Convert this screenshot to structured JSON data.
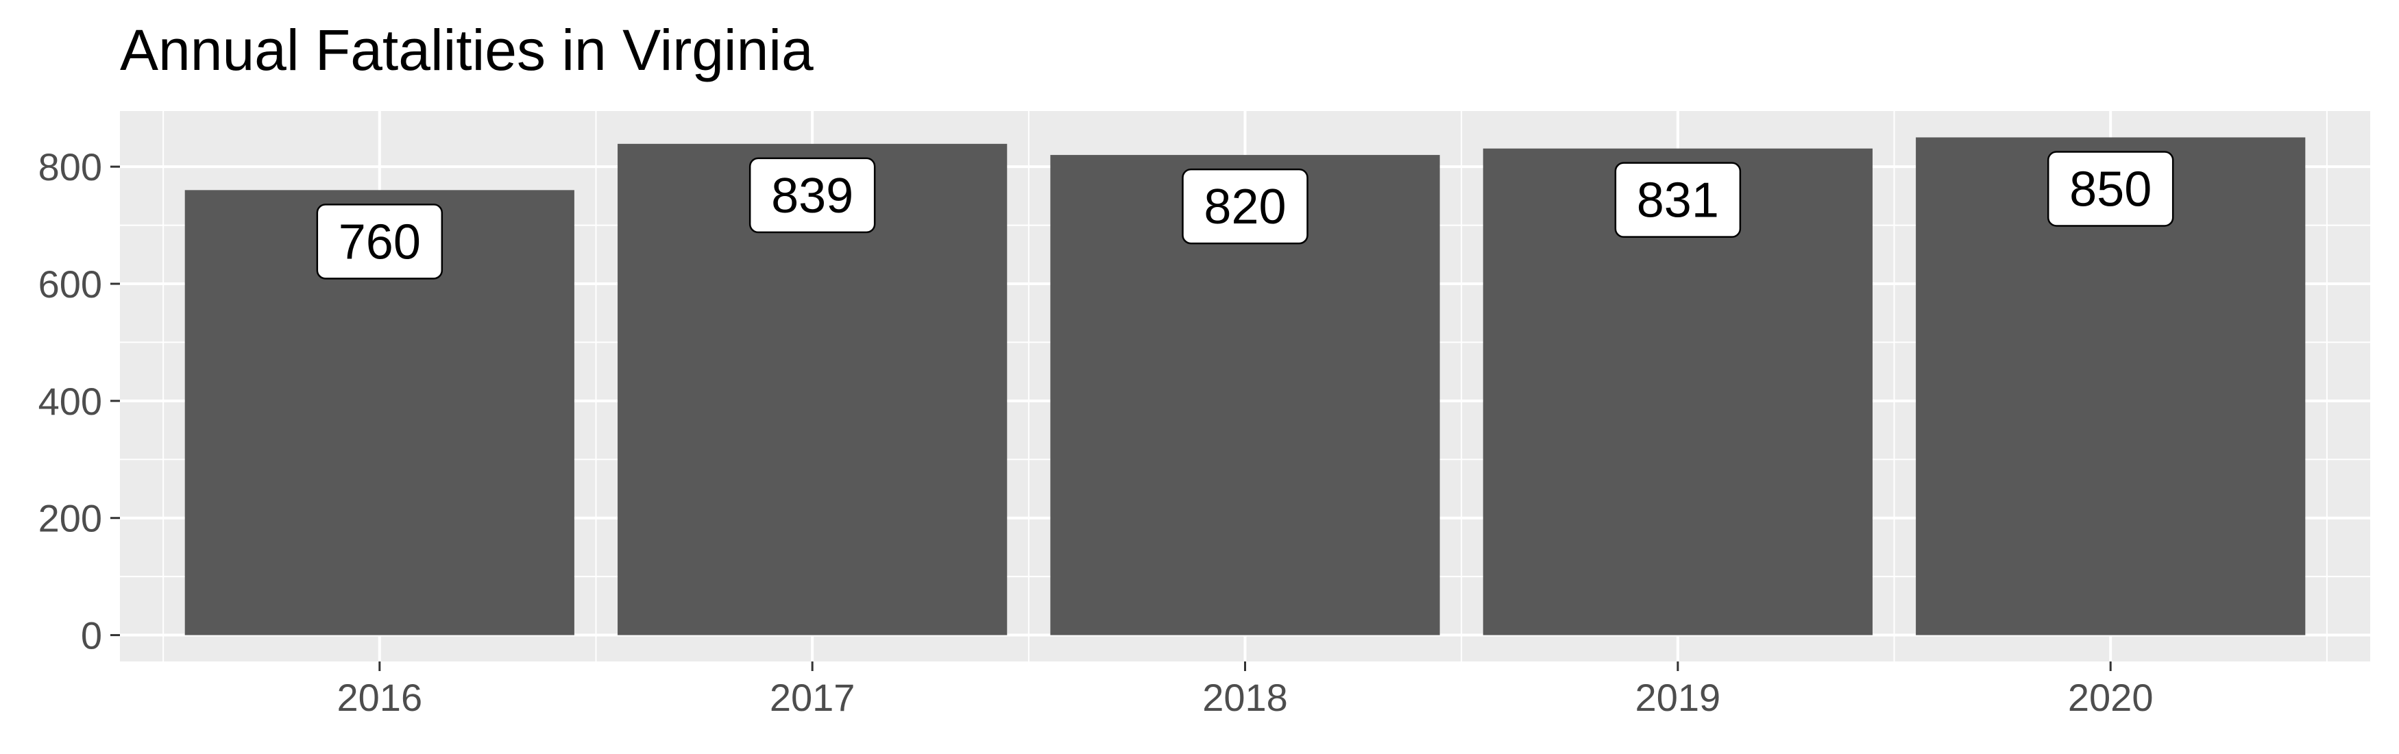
{
  "chart_data": {
    "type": "bar",
    "title": "Annual Fatalities in Virginia",
    "xlabel": "",
    "ylabel": "",
    "categories": [
      "2016",
      "2017",
      "2018",
      "2019",
      "2020"
    ],
    "values": [
      760,
      839,
      820,
      831,
      850
    ],
    "data_labels": [
      "760",
      "839",
      "820",
      "831",
      "850"
    ],
    "y_ticks": [
      0,
      200,
      400,
      600,
      800
    ],
    "y_tick_labels": [
      "0",
      "200",
      "400",
      "600",
      "800"
    ],
    "ylim": [
      0,
      900
    ],
    "grid": true,
    "legend": "none",
    "colors": {
      "bar": "#595959",
      "panel": "#ebebeb",
      "grid": "#ffffff",
      "label_box": "#ffffff",
      "label_border": "#000000",
      "tick_text": "#4d4d4d"
    }
  }
}
